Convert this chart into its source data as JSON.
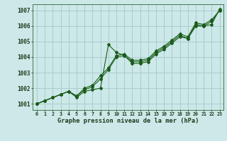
{
  "title": "Graphe pression niveau de la mer (hPa)",
  "bg_color": "#cce8e8",
  "grid_color": "#aacccc",
  "line_color": "#1a5c1a",
  "x_labels": [
    "0",
    "1",
    "2",
    "3",
    "4",
    "5",
    "6",
    "7",
    "8",
    "9",
    "10",
    "11",
    "12",
    "13",
    "14",
    "15",
    "16",
    "17",
    "18",
    "19",
    "20",
    "21",
    "22",
    "23"
  ],
  "ylim": [
    1000.6,
    1007.4
  ],
  "yticks": [
    1001,
    1002,
    1003,
    1004,
    1005,
    1006,
    1007
  ],
  "series": [
    [
      1001.0,
      1001.2,
      1001.4,
      1001.6,
      1001.8,
      1001.4,
      1001.8,
      1001.9,
      1002.0,
      1004.8,
      1004.3,
      1004.1,
      1003.6,
      1003.6,
      1003.7,
      1004.2,
      1004.5,
      1004.9,
      1005.3,
      1005.2,
      1006.0,
      1006.0,
      1006.1,
      1007.1
    ],
    [
      1001.0,
      1001.2,
      1001.4,
      1001.6,
      1001.8,
      1001.5,
      1001.9,
      1002.1,
      1002.6,
      1003.2,
      1004.0,
      1004.1,
      1003.7,
      1003.7,
      1003.8,
      1004.3,
      1004.6,
      1005.0,
      1005.4,
      1005.2,
      1006.1,
      1006.0,
      1006.3,
      1007.0
    ],
    [
      1001.0,
      1001.2,
      1001.4,
      1001.6,
      1001.8,
      1001.5,
      1002.0,
      1002.2,
      1002.8,
      1003.3,
      1004.1,
      1004.2,
      1003.8,
      1003.8,
      1003.9,
      1004.4,
      1004.7,
      1005.1,
      1005.5,
      1005.3,
      1006.2,
      1006.1,
      1006.4,
      1007.0
    ]
  ]
}
